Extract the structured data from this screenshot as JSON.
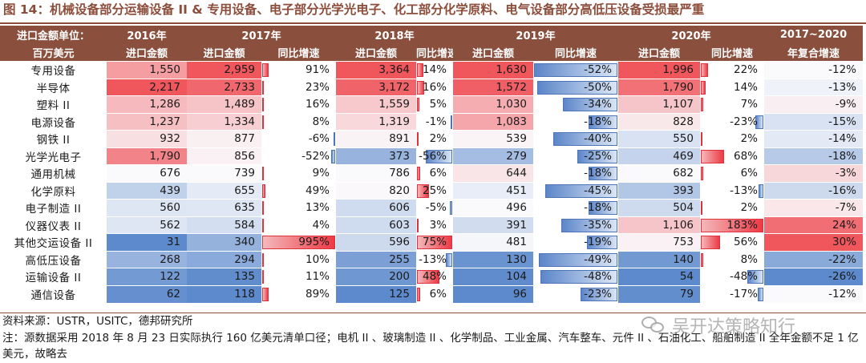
{
  "title": "图 14：机械设备部分运输设备 II & 专用设备、电子部分光学光电子、化工部分化学原料、电气设备部分高低压设备受损最严重",
  "table": {
    "corner_top": "进口金额单位：",
    "corner_bottom": "百万美元",
    "years": [
      "2016年",
      "2017年",
      "2018年",
      "2019年",
      "2020年",
      "2017~2020"
    ],
    "col_labels": {
      "amount": "进口金额",
      "growth": "同比增速",
      "cagr": "年复合增速"
    }
  },
  "chart_data": {
    "type": "table",
    "columns": [
      "2016年 进口金额",
      "2017年 进口金额",
      "2017年 同比增速",
      "2018年 进口金额",
      "2018年 同比增速",
      "2019年 进口金额",
      "2019年 同比增速",
      "2020年 进口金额",
      "2020年 同比增速",
      "2017~2020 年复合增速"
    ],
    "rows": [
      {
        "name": "专用设备",
        "v": [
          "1,550",
          "2,959",
          "91%",
          "3,364",
          "14%",
          "1,630",
          "-52%",
          "1,996",
          "22%",
          "-12%"
        ]
      },
      {
        "name": "半导体",
        "v": [
          "2,217",
          "2,733",
          "23%",
          "3,172",
          "16%",
          "1,572",
          "-50%",
          "1,790",
          "14%",
          "-13%"
        ]
      },
      {
        "name": "塑料 II",
        "v": [
          "1,286",
          "1,489",
          "16%",
          "1,559",
          "5%",
          "1,030",
          "-34%",
          "1,107",
          "7%",
          "-9%"
        ]
      },
      {
        "name": "电源设备",
        "v": [
          "1,237",
          "1,334",
          "8%",
          "1,319",
          "-1%",
          "1,083",
          "-18%",
          "828",
          "-23%",
          "-15%"
        ]
      },
      {
        "name": "钢铁 II",
        "v": [
          "932",
          "877",
          "-6%",
          "891",
          "2%",
          "539",
          "-40%",
          "550",
          "2%",
          "-14%"
        ]
      },
      {
        "name": "光学光电子",
        "v": [
          "1,790",
          "856",
          "-52%",
          "373",
          "-56%",
          "279",
          "-25%",
          "469",
          "68%",
          "-18%"
        ]
      },
      {
        "name": "通用机械",
        "v": [
          "676",
          "739",
          "9%",
          "786",
          "6%",
          "644",
          "-18%",
          "682",
          "6%",
          "-3%"
        ]
      },
      {
        "name": "化学原料",
        "v": [
          "439",
          "655",
          "49%",
          "820",
          "25%",
          "451",
          "-45%",
          "393",
          "-13%",
          "-16%"
        ]
      },
      {
        "name": "电子制造 II",
        "v": [
          "560",
          "635",
          "13%",
          "606",
          "-5%",
          "496",
          "-18%",
          "504",
          "2%",
          "-7%"
        ]
      },
      {
        "name": "仪器仪表 II",
        "v": [
          "562",
          "584",
          "4%",
          "603",
          "3%",
          "391",
          "-35%",
          "1,106",
          "183%",
          "24%"
        ]
      },
      {
        "name": "其他交运设备 II",
        "v": [
          "31",
          "340",
          "995%",
          "596",
          "75%",
          "481",
          "-19%",
          "753",
          "56%",
          "30%"
        ]
      },
      {
        "name": "高低压设备",
        "v": [
          "268",
          "294",
          "10%",
          "255",
          "-13%",
          "130",
          "-49%",
          "140",
          "8%",
          "-22%"
        ]
      },
      {
        "name": "运输设备 II",
        "v": [
          "122",
          "135",
          "11%",
          "200",
          "48%",
          "104",
          "-48%",
          "54",
          "-48%",
          "-26%"
        ]
      },
      {
        "name": "通信设备",
        "v": [
          "62",
          "118",
          "89%",
          "125",
          "6%",
          "96",
          "-23%",
          "79",
          "-17%",
          "-12%"
        ]
      }
    ]
  },
  "footer": {
    "source": "资料来源：USTR，USITC，德邦研究所",
    "note": "注：源数据采用 2018 年 8 月 23 日实际执行 160 亿美元清单口径；电机 II 、玻璃制造 II 、化学制品、工业金属、汽车整车、元件 II 、石油化工、船舶制造 II 全年金额不足 1 亿美元，故略去"
  },
  "watermark": "吴开达策略知行",
  "colors": {
    "header_bg": "#8a4f3d",
    "title_color": "#8c4d3b",
    "positive": "#e8353f",
    "negative": "#5a85c8"
  }
}
